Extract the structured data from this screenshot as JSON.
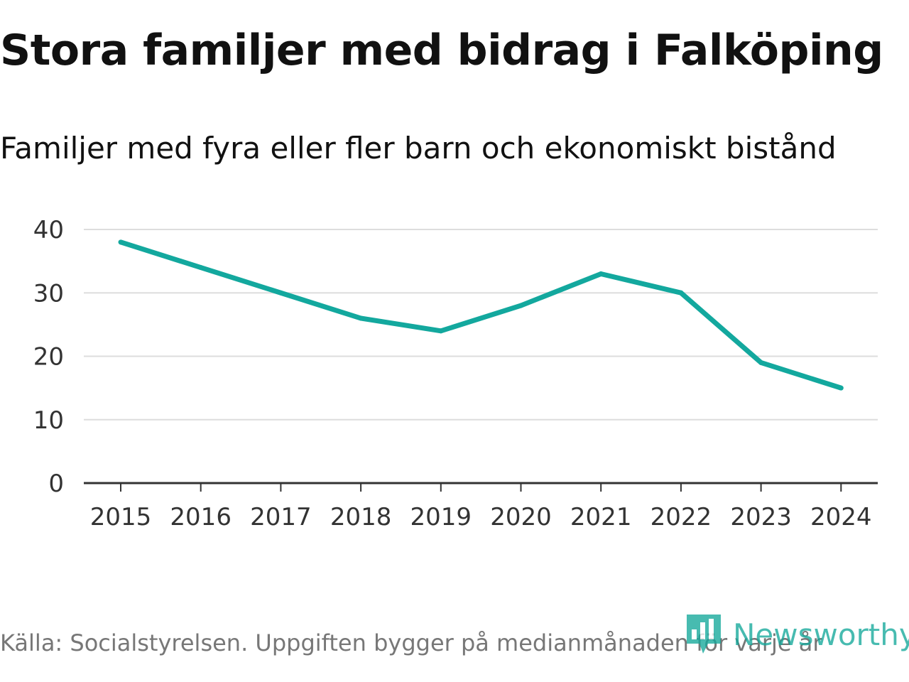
{
  "header": {
    "title": "Stora familjer med bidrag i Falköping",
    "subtitle": "Familjer med fyra eller fler barn och ekonomiskt bistånd"
  },
  "footer": {
    "source": "Källa: Socialstyrelsen. Uppgiften bygger på medianmånaden för varje år",
    "brand": "Newsworthy"
  },
  "colors": {
    "line": "#13a89e",
    "grid": "#dddddd",
    "axis": "#333333",
    "brand": "#14a89b"
  },
  "chart_data": {
    "type": "line",
    "title": "Stora familjer med bidrag i Falköping",
    "subtitle": "Familjer med fyra eller fler barn och ekonomiskt bistånd",
    "xlabel": "",
    "ylabel": "",
    "categories": [
      "2015",
      "2016",
      "2017",
      "2018",
      "2019",
      "2020",
      "2021",
      "2022",
      "2023",
      "2024"
    ],
    "series": [
      {
        "name": "Familjer med fyra eller fler barn och ekonomiskt bistånd",
        "values": [
          38,
          34,
          30,
          26,
          24,
          28,
          33,
          30,
          19,
          15
        ]
      }
    ],
    "ylim": [
      0,
      40
    ],
    "yticks": [
      0,
      10,
      20,
      30,
      40
    ],
    "grid": true,
    "legend": "none"
  }
}
